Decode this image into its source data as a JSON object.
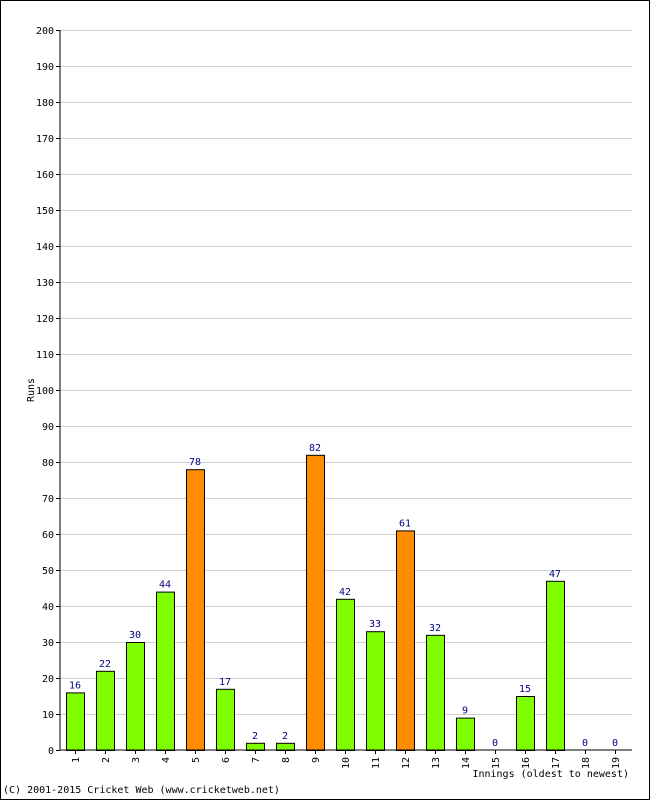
{
  "chart_data": {
    "type": "bar",
    "xlabel": "Innings (oldest to newest)",
    "ylabel": "Runs",
    "ylim": [
      0,
      200
    ],
    "y_tick_step": 10,
    "grid": true,
    "categories": [
      "1",
      "2",
      "3",
      "4",
      "5",
      "6",
      "7",
      "8",
      "9",
      "10",
      "11",
      "12",
      "13",
      "14",
      "15",
      "16",
      "17",
      "18",
      "19"
    ],
    "values": [
      16,
      22,
      30,
      44,
      78,
      17,
      2,
      2,
      82,
      42,
      33,
      61,
      32,
      9,
      0,
      15,
      47,
      0,
      0
    ],
    "highlight_threshold": 50,
    "colors": {
      "normal": "#7FFF00",
      "highlight": "#FF8C00",
      "label": "#000080",
      "grid": "#d0d0d0"
    }
  },
  "footer": "(C) 2001-2015 Cricket Web (www.cricketweb.net)"
}
